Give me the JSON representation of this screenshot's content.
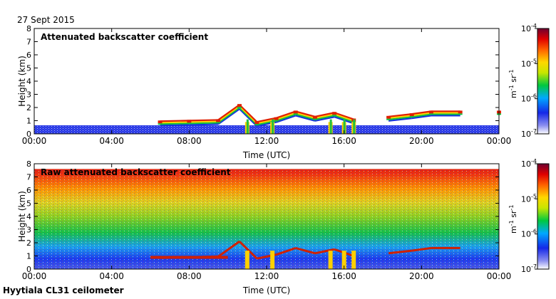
{
  "date_label": "27 Sept 2015",
  "instrument_label": "Hyytiala CL31 ceilometer",
  "chart_data": [
    {
      "type": "heatmap",
      "title": "Attenuated backscatter coefficient",
      "xlabel": "Time (UTC)",
      "ylabel": "Height (km)",
      "xlim_hours": [
        0,
        24
      ],
      "ylim": [
        0,
        8
      ],
      "x_ticks": [
        "00:00",
        "04:00",
        "08:00",
        "12:00",
        "16:00",
        "20:00",
        "00:00"
      ],
      "y_ticks": [
        "0",
        "1",
        "2",
        "3",
        "4",
        "5",
        "6",
        "7",
        "8"
      ],
      "colorbar": {
        "label": "m-1 sr-1",
        "ticks": [
          "10-7",
          "10-6",
          "10-5",
          "10-4"
        ],
        "range_log10": [
          -7,
          -4
        ]
      },
      "features": {
        "surface_layer_top_km": 0.6,
        "cloud_layer": [
          {
            "hour": 6.5,
            "height_km": 0.85
          },
          {
            "hour": 8.0,
            "height_km": 0.9
          },
          {
            "hour": 9.5,
            "height_km": 0.95
          },
          {
            "hour": 10.6,
            "height_km": 2.1
          },
          {
            "hour": 11.5,
            "height_km": 0.8
          },
          {
            "hour": 12.5,
            "height_km": 1.1
          },
          {
            "hour": 13.5,
            "height_km": 1.6
          },
          {
            "hour": 14.5,
            "height_km": 1.2
          },
          {
            "hour": 15.5,
            "height_km": 1.5
          },
          {
            "hour": 16.5,
            "height_km": 1.0
          },
          {
            "hour": 18.3,
            "height_km": 1.2
          },
          {
            "hour": 19.5,
            "height_km": 1.4
          },
          {
            "hour": 20.5,
            "height_km": 1.6
          },
          {
            "hour": 22.0,
            "height_km": 1.6
          },
          {
            "hour": 24.0,
            "height_km": 1.6
          }
        ],
        "precip_columns_hours": [
          11.0,
          12.3,
          15.3,
          16.0,
          16.5
        ]
      }
    },
    {
      "type": "heatmap",
      "title": "Raw attenuated backscatter coefficient",
      "xlabel": "Time (UTC)",
      "ylabel": "Height (km)",
      "xlim_hours": [
        0,
        24
      ],
      "ylim": [
        0,
        8
      ],
      "x_ticks": [
        "00:00",
        "04:00",
        "08:00",
        "12:00",
        "16:00",
        "20:00",
        "00:00"
      ],
      "y_ticks": [
        "0",
        "1",
        "2",
        "3",
        "4",
        "5",
        "6",
        "7",
        "8"
      ],
      "colorbar": {
        "label": "m-1 sr-1",
        "ticks": [
          "10-7",
          "10-6",
          "10-5",
          "10-4"
        ],
        "range_log10": [
          -7,
          -4
        ]
      },
      "features": {
        "data_top_km": 7.6,
        "noise_gradient": "blue near surface to red near top"
      }
    }
  ]
}
